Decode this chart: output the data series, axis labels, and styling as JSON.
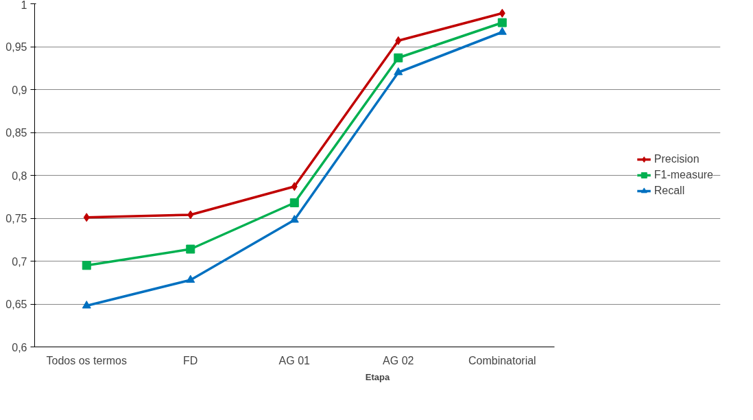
{
  "chart_data": {
    "type": "line",
    "xlabel": "Etapa",
    "categories": [
      "Todos os termos",
      "FD",
      "AG 01",
      "AG 02",
      "Combinatorial"
    ],
    "series": [
      {
        "name": "Precision",
        "color": "#c00000",
        "marker": "diamond",
        "values": [
          0.751,
          0.754,
          0.787,
          0.957,
          0.989
        ]
      },
      {
        "name": "F1-measure",
        "color": "#00b050",
        "marker": "square",
        "values": [
          0.695,
          0.714,
          0.768,
          0.937,
          0.978
        ]
      },
      {
        "name": "Recall",
        "color": "#0070c0",
        "marker": "triangle",
        "values": [
          0.648,
          0.678,
          0.748,
          0.92,
          0.967
        ]
      }
    ],
    "ylim": [
      0.6,
      1
    ],
    "yticks": [
      {
        "value": 0.6,
        "label": "0,6"
      },
      {
        "value": 0.65,
        "label": "0,65"
      },
      {
        "value": 0.7,
        "label": "0,7"
      },
      {
        "value": 0.75,
        "label": "0,75"
      },
      {
        "value": 0.8,
        "label": "0,8"
      },
      {
        "value": 0.85,
        "label": "0,85"
      },
      {
        "value": 0.9,
        "label": "0,9"
      },
      {
        "value": 0.95,
        "label": "0,95"
      },
      {
        "value": 1,
        "label": "1"
      }
    ],
    "grid": "y",
    "legend": "right",
    "line_style": "solid"
  }
}
